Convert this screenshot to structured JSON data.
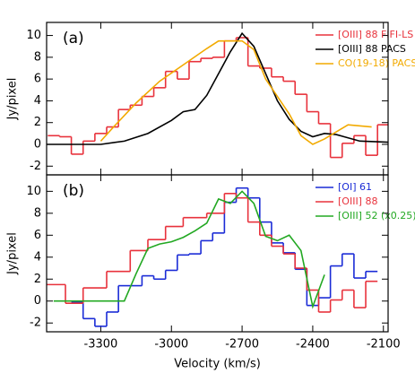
{
  "chart_data": [
    {
      "type": "line",
      "panel_label": "(a)",
      "y_label": "Jy/pixel",
      "xlim": [
        -3530,
        -2080
      ],
      "ylim": [
        -2.8,
        11.2
      ],
      "yticks": [
        -2,
        0,
        2,
        4,
        6,
        8,
        10
      ],
      "series": [
        {
          "name": "[OIII] 88 FIFI-LS",
          "color": "#e8323c",
          "step": true,
          "x": [
            -3500,
            -3450,
            -3400,
            -3350,
            -3300,
            -3250,
            -3200,
            -3150,
            -3100,
            -3050,
            -3000,
            -2950,
            -2900,
            -2850,
            -2800,
            -2750,
            -2700,
            -2650,
            -2600,
            -2550,
            -2500,
            -2450,
            -2400,
            -2350,
            -2300,
            -2250,
            -2200,
            -2150,
            -2100
          ],
          "values": [
            0.8,
            0.7,
            -0.9,
            0.3,
            1.0,
            1.6,
            3.2,
            3.6,
            4.4,
            5.2,
            6.7,
            6.0,
            7.6,
            7.9,
            8.0,
            9.5,
            9.8,
            7.2,
            7.0,
            6.2,
            5.8,
            4.6,
            3.0,
            1.9,
            -1.2,
            0.1,
            0.8,
            -1.0,
            1.8
          ]
        },
        {
          "name": "[OIII] 88 PACS",
          "color": "#000000",
          "step": false,
          "x": [
            -3530,
            -3300,
            -3200,
            -3100,
            -3000,
            -2950,
            -2900,
            -2850,
            -2800,
            -2750,
            -2700,
            -2650,
            -2600,
            -2550,
            -2500,
            -2450,
            -2400,
            -2350,
            -2300,
            -2200,
            -2080
          ],
          "values": [
            0,
            0,
            0.3,
            1.0,
            2.2,
            3.0,
            3.2,
            4.5,
            6.5,
            8.5,
            10.2,
            9.0,
            6.5,
            4.0,
            2.3,
            1.2,
            0.7,
            1.0,
            0.9,
            0.3,
            0.2
          ]
        },
        {
          "name": "CO(19-18) PACS",
          "color": "#f2aa00",
          "step": false,
          "x": [
            -3300,
            -3250,
            -3150,
            -3050,
            -2950,
            -2850,
            -2800,
            -2700,
            -2650,
            -2600,
            -2500,
            -2450,
            -2400,
            -2350,
            -2250,
            -2150
          ],
          "values": [
            0.3,
            1.5,
            3.8,
            5.8,
            7.3,
            8.8,
            9.5,
            9.5,
            8.7,
            6.0,
            2.8,
            0.8,
            0.0,
            0.5,
            1.8,
            1.6
          ]
        }
      ]
    },
    {
      "type": "line",
      "panel_label": "(b)",
      "y_label": "Jy/pixel",
      "x_label": "Velocity (km/s)",
      "xlim": [
        -3530,
        -2080
      ],
      "ylim": [
        -2.8,
        11.5
      ],
      "yticks": [
        -2,
        0,
        2,
        4,
        6,
        8,
        10
      ],
      "xticks": [
        -3300,
        -3000,
        -2700,
        -2400,
        -2100
      ],
      "series": [
        {
          "name": "[OI] 61",
          "color": "#1a2bd6",
          "step": true,
          "x": [
            -3400,
            -3350,
            -3300,
            -3250,
            -3200,
            -3150,
            -3100,
            -3050,
            -3000,
            -2950,
            -2900,
            -2850,
            -2800,
            -2750,
            -2700,
            -2650,
            -2600,
            -2550,
            -2500,
            -2450,
            -2400,
            -2350,
            -2300,
            -2250,
            -2200,
            -2150
          ],
          "values": [
            -0.1,
            -1.6,
            -2.3,
            -1.0,
            1.4,
            1.4,
            2.3,
            2.0,
            2.8,
            4.2,
            4.3,
            5.5,
            6.2,
            9.0,
            10.3,
            9.4,
            7.2,
            5.3,
            4.4,
            2.9,
            -0.4,
            0.3,
            3.2,
            4.3,
            2.1,
            2.7
          ]
        },
        {
          "name": "[OIII] 88",
          "color": "#e8323c",
          "step": true,
          "x": [
            -3500,
            -3400,
            -3350,
            -3200,
            -3150,
            -3050,
            -3000,
            -2900,
            -2800,
            -2750,
            -2700,
            -2650,
            -2600,
            -2550,
            -2500,
            -2450,
            -2400,
            -2350,
            -2300,
            -2250,
            -2200,
            -2150
          ],
          "values": [
            1.5,
            -0.2,
            1.2,
            2.7,
            4.6,
            5.6,
            6.8,
            7.6,
            8.0,
            9.8,
            9.4,
            7.2,
            6.0,
            5.0,
            4.3,
            3.0,
            1.0,
            -1.0,
            0.1,
            1.0,
            -0.6,
            1.8
          ]
        },
        {
          "name": "[OIII] 52 (x0.25)",
          "color": "#22a822",
          "step": false,
          "x": [
            -3500,
            -3200,
            -3150,
            -3100,
            -3050,
            -3000,
            -2950,
            -2900,
            -2850,
            -2800,
            -2750,
            -2700,
            -2650,
            -2600,
            -2550,
            -2500,
            -2450,
            -2400,
            -2350
          ],
          "values": [
            0,
            0,
            2.5,
            4.8,
            5.2,
            5.4,
            5.8,
            6.4,
            7.1,
            9.3,
            8.9,
            10.0,
            8.9,
            5.9,
            5.5,
            6.0,
            4.6,
            -0.5,
            2.4
          ]
        }
      ]
    }
  ]
}
